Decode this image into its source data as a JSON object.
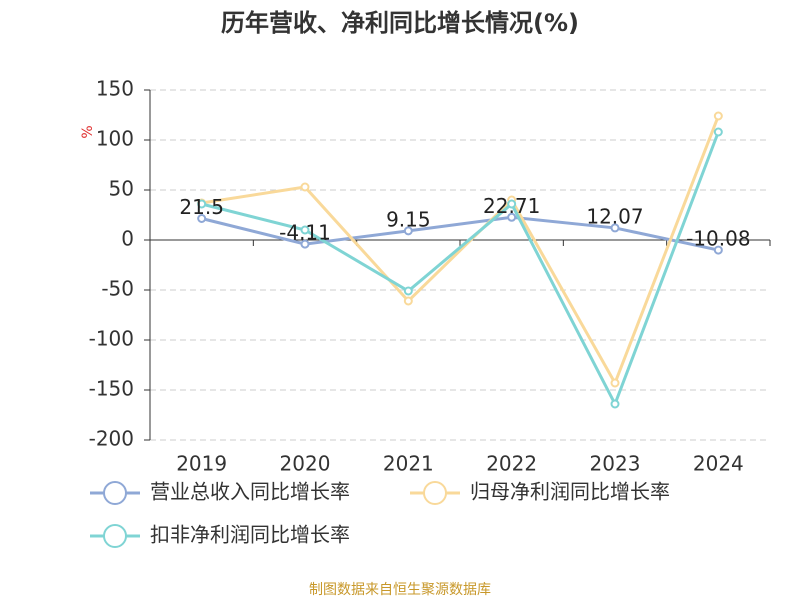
{
  "chart_data": {
    "type": "line",
    "title": "历年营收、净利同比增长情况(%)",
    "y_label": "%",
    "source": "制图数据来自恒生聚源数据库",
    "categories": [
      "2019",
      "2020",
      "2021",
      "2022",
      "2023",
      "2024"
    ],
    "series": [
      {
        "name": "营业总收入同比增长率",
        "color": "#8fa8d6",
        "values": [
          21.5,
          -4.11,
          9.15,
          22.71,
          12.07,
          -10.08
        ],
        "show_labels": true
      },
      {
        "name": "归母净利润同比增长率",
        "color": "#f9d99a",
        "values": [
          37,
          53,
          -61,
          40,
          -143,
          124
        ]
      },
      {
        "name": "扣非净利润同比增长率",
        "color": "#7fd4d4",
        "values": [
          36,
          10,
          -51,
          36,
          -164,
          108
        ]
      }
    ],
    "ylim": [
      -200,
      150
    ],
    "yticks": [
      -200,
      -150,
      -100,
      -50,
      0,
      50,
      100,
      150
    ],
    "grid": true
  }
}
